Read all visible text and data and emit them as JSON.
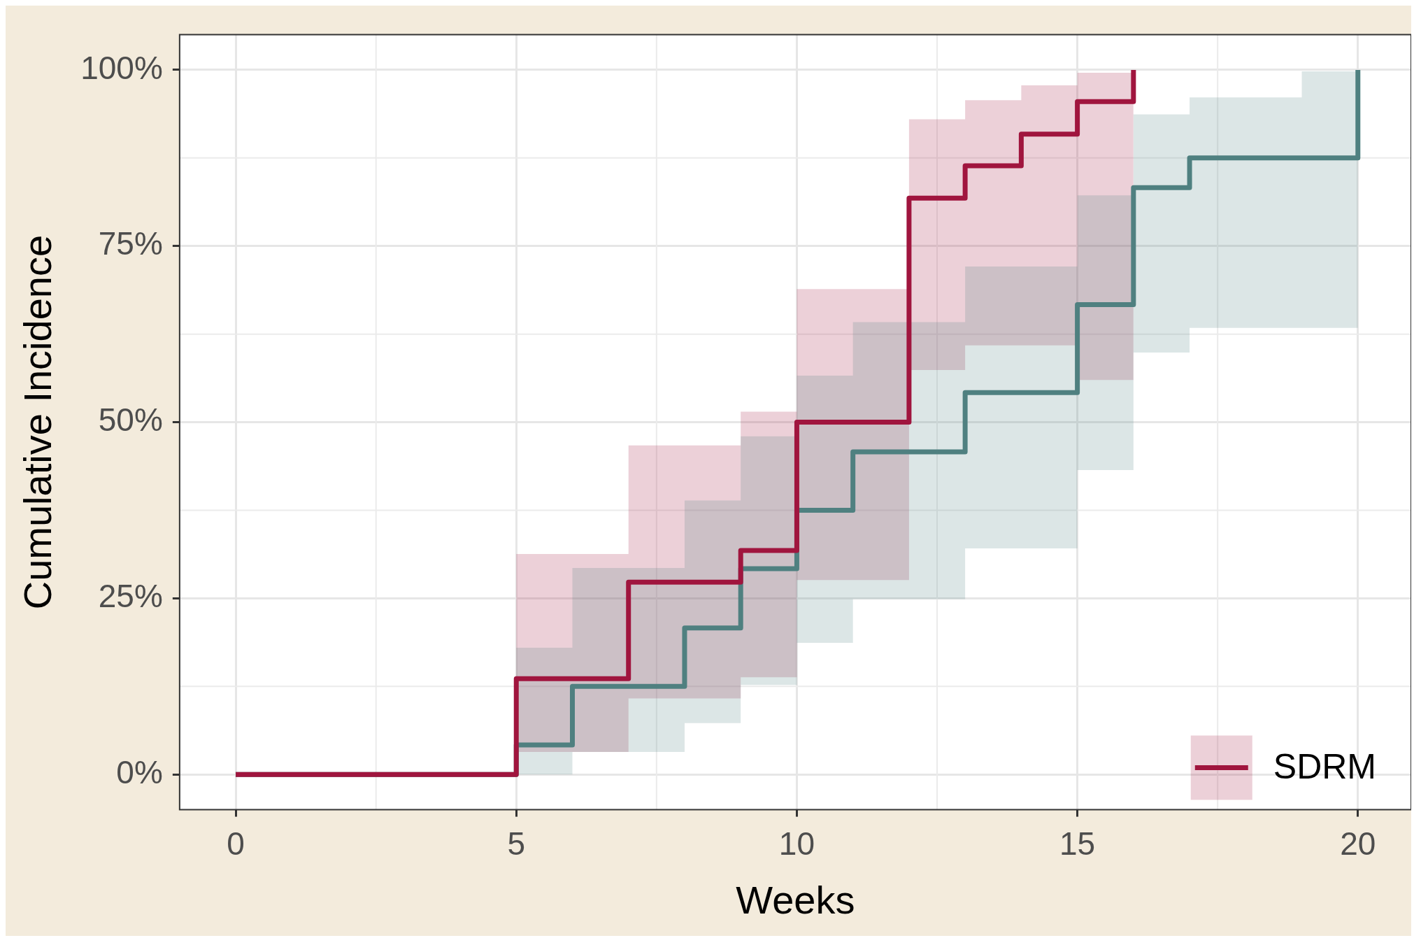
{
  "chart_data": {
    "type": "step",
    "xlabel": "Weeks",
    "ylabel": "Cumulative Incidence",
    "xlim": [
      -1,
      20.95
    ],
    "ylim": [
      -5,
      105
    ],
    "xticks": [
      0,
      5,
      10,
      15,
      20
    ],
    "yticks": [
      {
        "value": 0,
        "label": "0%"
      },
      {
        "value": 25,
        "label": "25%"
      },
      {
        "value": 50,
        "label": "50%"
      },
      {
        "value": 75,
        "label": "75%"
      },
      {
        "value": 100,
        "label": "100%"
      }
    ],
    "grid": true,
    "legend": "bottom right",
    "line_style": "solid",
    "marker": "none",
    "series": [
      {
        "color": "#4f8080",
        "x": [
          0,
          5,
          6,
          8,
          9,
          10,
          11,
          13,
          15,
          16,
          17,
          19,
          20
        ],
        "values": [
          0,
          4.2,
          12.5,
          20.8,
          29.2,
          37.5,
          45.8,
          54.2,
          66.7,
          83.3,
          87.5,
          87.5,
          100
        ],
        "lower": [
          0,
          0,
          3.2,
          7.3,
          12.7,
          18.7,
          24.9,
          32.1,
          43.2,
          59.9,
          63.4,
          63.4,
          63.4
        ],
        "upper": [
          0,
          18,
          29.3,
          38.9,
          48,
          56.6,
          64.2,
          72.1,
          82.2,
          93.7,
          96.1,
          99.8,
          99.8
        ]
      },
      {
        "name": "SDRM",
        "color": "#a0153e",
        "x": [
          0,
          5,
          7,
          9,
          10,
          12,
          13,
          14,
          15,
          16
        ],
        "values": [
          0,
          13.6,
          27.3,
          31.8,
          50,
          81.8,
          86.4,
          90.9,
          95.5,
          100
        ],
        "lower": [
          0,
          3.2,
          10.8,
          13.8,
          27.6,
          57.4,
          60.9,
          60.9,
          56,
          56
        ],
        "upper": [
          0,
          31.3,
          46.7,
          51.5,
          68.9,
          93,
          95.7,
          97.8,
          99.6,
          99.6
        ]
      }
    ]
  }
}
